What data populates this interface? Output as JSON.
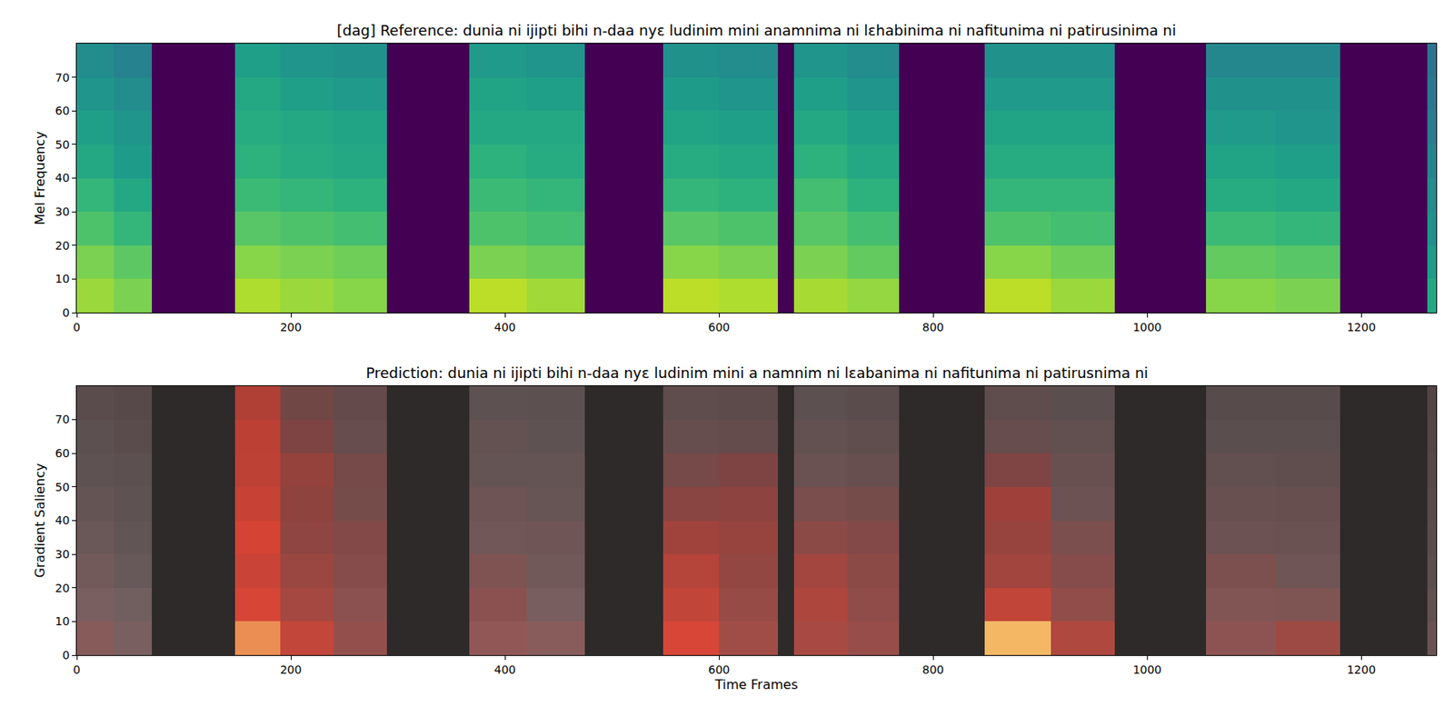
{
  "chart_data": [
    {
      "type": "heatmap",
      "title": "[dag] Reference: dunia ni ijipti bihi n-daa nyɛ ludinim mini anamnima ni lɛhabinima ni nafitunima ni patirusinima ni",
      "y_label": "Mel Frequency",
      "x_edges": [
        0,
        35,
        70,
        148,
        190,
        240,
        290,
        367,
        420,
        475,
        548,
        600,
        655,
        670,
        720,
        768,
        848,
        910,
        970,
        1055,
        1120,
        1180,
        1262,
        1270
      ],
      "y_edges": [
        0,
        10,
        20,
        30,
        40,
        50,
        60,
        70,
        80
      ],
      "cells": [
        [
          0.85,
          0.8,
          0,
          0.88,
          0.85,
          0.82,
          0,
          0.9,
          0.86,
          0,
          0.9,
          0.88,
          0,
          0.87,
          0.84,
          0,
          0.9,
          0.85,
          0,
          0.82,
          0.8,
          0,
          0.6
        ],
        [
          0.8,
          0.75,
          0,
          0.82,
          0.8,
          0.78,
          0,
          0.8,
          0.78,
          0,
          0.82,
          0.8,
          0,
          0.8,
          0.76,
          0,
          0.82,
          0.78,
          0,
          0.76,
          0.74,
          0,
          0.55
        ],
        [
          0.72,
          0.66,
          0,
          0.74,
          0.72,
          0.7,
          0,
          0.72,
          0.7,
          0,
          0.74,
          0.72,
          0,
          0.74,
          0.7,
          0,
          0.72,
          0.7,
          0,
          0.68,
          0.66,
          0,
          0.5
        ],
        [
          0.66,
          0.6,
          0,
          0.68,
          0.66,
          0.64,
          0,
          0.68,
          0.66,
          0,
          0.66,
          0.64,
          0,
          0.7,
          0.64,
          0,
          0.66,
          0.66,
          0,
          0.62,
          0.6,
          0,
          0.48
        ],
        [
          0.6,
          0.55,
          0,
          0.64,
          0.62,
          0.6,
          0,
          0.64,
          0.62,
          0,
          0.62,
          0.6,
          0,
          0.64,
          0.6,
          0,
          0.62,
          0.62,
          0,
          0.58,
          0.56,
          0,
          0.45
        ],
        [
          0.56,
          0.52,
          0,
          0.62,
          0.6,
          0.58,
          0,
          0.6,
          0.6,
          0,
          0.58,
          0.56,
          0,
          0.6,
          0.56,
          0,
          0.58,
          0.58,
          0,
          0.54,
          0.52,
          0,
          0.42
        ],
        [
          0.52,
          0.48,
          0,
          0.6,
          0.56,
          0.54,
          0,
          0.58,
          0.56,
          0,
          0.55,
          0.52,
          0,
          0.56,
          0.52,
          0,
          0.54,
          0.54,
          0,
          0.5,
          0.5,
          0,
          0.4
        ],
        [
          0.48,
          0.44,
          0,
          0.56,
          0.52,
          0.5,
          0,
          0.54,
          0.52,
          0,
          0.5,
          0.48,
          0,
          0.52,
          0.48,
          0,
          0.5,
          0.5,
          0,
          0.46,
          0.46,
          0,
          0.38
        ]
      ],
      "zlim": [
        0,
        1
      ],
      "xlim": [
        0,
        1270
      ],
      "ylim": [
        0,
        80
      ],
      "xticks": [
        0,
        200,
        400,
        600,
        800,
        1000,
        1200
      ],
      "yticks": [
        0,
        10,
        20,
        30,
        40,
        50,
        60,
        70
      ]
    },
    {
      "type": "heatmap",
      "title": "Prediction: dunia ni ijipti bihi n-daa nyɛ ludinim mini a namnim ni lɛabanima ni nafitunima ni patirusnima ni",
      "x_label": "Time Frames",
      "y_label": "Gradient Saliency",
      "x_edges": [
        0,
        35,
        70,
        148,
        190,
        240,
        290,
        367,
        420,
        475,
        548,
        600,
        655,
        670,
        720,
        768,
        848,
        910,
        970,
        1055,
        1120,
        1180,
        1262,
        1270
      ],
      "y_edges": [
        0,
        10,
        20,
        30,
        40,
        50,
        60,
        70,
        80
      ],
      "cells": [
        [
          0.1,
          0.05,
          0,
          0.8,
          0.5,
          0.2,
          0,
          0.15,
          0.1,
          0,
          0.6,
          0.3,
          0,
          0.35,
          0.25,
          0,
          0.9,
          0.4,
          0,
          0.15,
          0.3,
          0,
          0.05
        ],
        [
          0.05,
          0.03,
          0,
          0.6,
          0.35,
          0.15,
          0,
          0.15,
          0.05,
          0,
          0.5,
          0.25,
          0,
          0.4,
          0.2,
          0,
          0.5,
          0.2,
          0,
          0.1,
          0.1,
          0,
          0.03
        ],
        [
          0.05,
          0.02,
          0,
          0.55,
          0.3,
          0.15,
          0,
          0.1,
          0.05,
          0,
          0.45,
          0.25,
          0,
          0.35,
          0.2,
          0,
          0.35,
          0.15,
          0,
          0.1,
          0.05,
          0,
          0.02
        ],
        [
          0.03,
          0.02,
          0,
          0.6,
          0.25,
          0.15,
          0,
          0.05,
          0.05,
          0,
          0.35,
          0.3,
          0,
          0.2,
          0.15,
          0,
          0.3,
          0.1,
          0,
          0.05,
          0.05,
          0,
          0.02
        ],
        [
          0.03,
          0.02,
          0,
          0.55,
          0.25,
          0.1,
          0,
          0.05,
          0.03,
          0,
          0.2,
          0.25,
          0,
          0.1,
          0.1,
          0,
          0.35,
          0.05,
          0,
          0.05,
          0.05,
          0,
          0.02
        ],
        [
          0.02,
          0.02,
          0,
          0.5,
          0.3,
          0.1,
          0,
          0.03,
          0.03,
          0,
          0.1,
          0.15,
          0,
          0.05,
          0.05,
          0,
          0.15,
          0.05,
          0,
          0.03,
          0.03,
          0,
          0.02
        ],
        [
          0.02,
          0.02,
          0,
          0.5,
          0.15,
          0.05,
          0,
          0.03,
          0.02,
          0,
          0.05,
          0.05,
          0,
          0.03,
          0.03,
          0,
          0.05,
          0.03,
          0,
          0.02,
          0.02,
          0,
          0.02
        ],
        [
          0.02,
          0.02,
          0,
          0.45,
          0.1,
          0.05,
          0,
          0.02,
          0.02,
          0,
          0.03,
          0.03,
          0,
          0.02,
          0.02,
          0,
          0.03,
          0.02,
          0,
          0.02,
          0.02,
          0,
          0.02
        ]
      ],
      "zlim": [
        0,
        1
      ],
      "xlim": [
        0,
        1270
      ],
      "ylim": [
        0,
        80
      ],
      "xticks": [
        0,
        200,
        400,
        600,
        800,
        1000,
        1200
      ],
      "yticks": [
        0,
        10,
        20,
        30,
        40,
        50,
        60,
        70
      ]
    }
  ]
}
